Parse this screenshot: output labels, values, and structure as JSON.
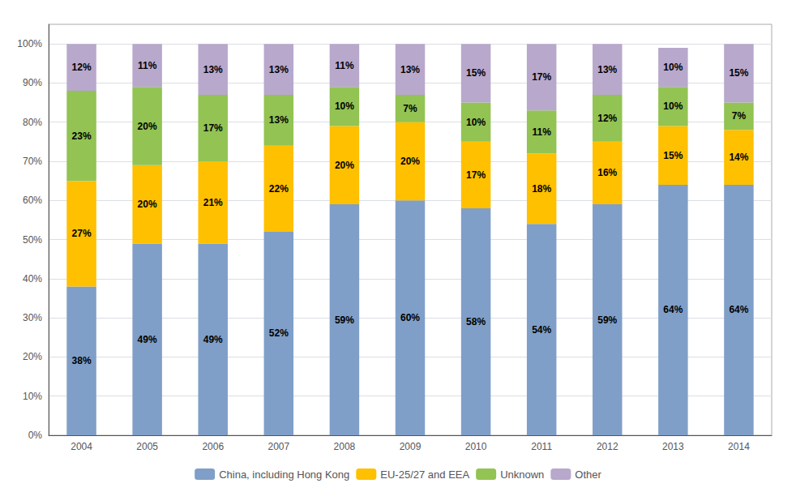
{
  "chart_data": {
    "type": "bar",
    "stacked": true,
    "data_labels": true,
    "grid": true,
    "legend": "bottom",
    "categories": [
      "2004",
      "2005",
      "2006",
      "2007",
      "2008",
      "2009",
      "2010",
      "2011",
      "2012",
      "2013",
      "2014"
    ],
    "series": [
      {
        "name": "China, including Hong Kong",
        "color": "#7F9FC8",
        "values": [
          38,
          49,
          49,
          52,
          59,
          60,
          58,
          54,
          59,
          64,
          64
        ],
        "value_labels": [
          "38%",
          "49%",
          "49%",
          "52%",
          "59%",
          "60%",
          "58%",
          "54%",
          "59%",
          "64%",
          "64%"
        ]
      },
      {
        "name": "EU-25/27 and EEA",
        "color": "#FFC000",
        "values": [
          27,
          20,
          21,
          22,
          20,
          20,
          17,
          18,
          16,
          15,
          14
        ],
        "value_labels": [
          "27%",
          "20%",
          "21%",
          "22%",
          "20%",
          "20%",
          "17%",
          "18%",
          "16%",
          "15%",
          "14%"
        ]
      },
      {
        "name": "Unknown",
        "color": "#92C353",
        "values": [
          23,
          20,
          17,
          13,
          10,
          7,
          10,
          11,
          12,
          10,
          7
        ],
        "value_labels": [
          "23%",
          "20%",
          "17%",
          "13%",
          "10%",
          "7%",
          "10%",
          "11%",
          "12%",
          "10%",
          "7%"
        ]
      },
      {
        "name": "Other",
        "color": "#B8A8CC",
        "values": [
          12,
          11,
          13,
          13,
          11,
          13,
          15,
          17,
          13,
          10,
          15
        ],
        "value_labels": [
          "12%",
          "11%",
          "13%",
          "13%",
          "11%",
          "13%",
          "15%",
          "17%",
          "13%",
          "10%",
          "15%"
        ]
      }
    ],
    "ylim": [
      0,
      105
    ],
    "yticks": [
      {
        "value": 0,
        "label": "0%"
      },
      {
        "value": 10,
        "label": "10%"
      },
      {
        "value": 20,
        "label": "20%"
      },
      {
        "value": 30,
        "label": "30%"
      },
      {
        "value": 40,
        "label": "40%"
      },
      {
        "value": 50,
        "label": "50%"
      },
      {
        "value": 60,
        "label": "60%"
      },
      {
        "value": 70,
        "label": "70%"
      },
      {
        "value": 80,
        "label": "80%"
      },
      {
        "value": 90,
        "label": "90%"
      },
      {
        "value": 100,
        "label": "100%"
      }
    ]
  }
}
